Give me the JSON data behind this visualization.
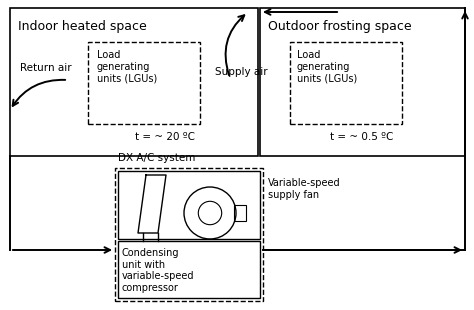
{
  "fig_width": 4.74,
  "fig_height": 3.1,
  "dpi": 100,
  "bg_color": "#ffffff",
  "indoor_title": "Indoor heated space",
  "outdoor_title": "Outdoor frosting space",
  "indoor_lgu_text": "Load\ngenerating\nunits (LGUs)",
  "outdoor_lgu_text": "Load\ngenerating\nunits (LGUs)",
  "indoor_temp": "t = ~ 20 ºC",
  "outdoor_temp": "t = ~ 0.5 ºC",
  "return_air_label": "Return air",
  "supply_air_label": "Supply air",
  "dx_label": "DX A/C system",
  "fan_label": "Variable-speed\nsupply fan",
  "condenser_label": "Condensing\nunit with\nvariable-speed\ncompressor"
}
